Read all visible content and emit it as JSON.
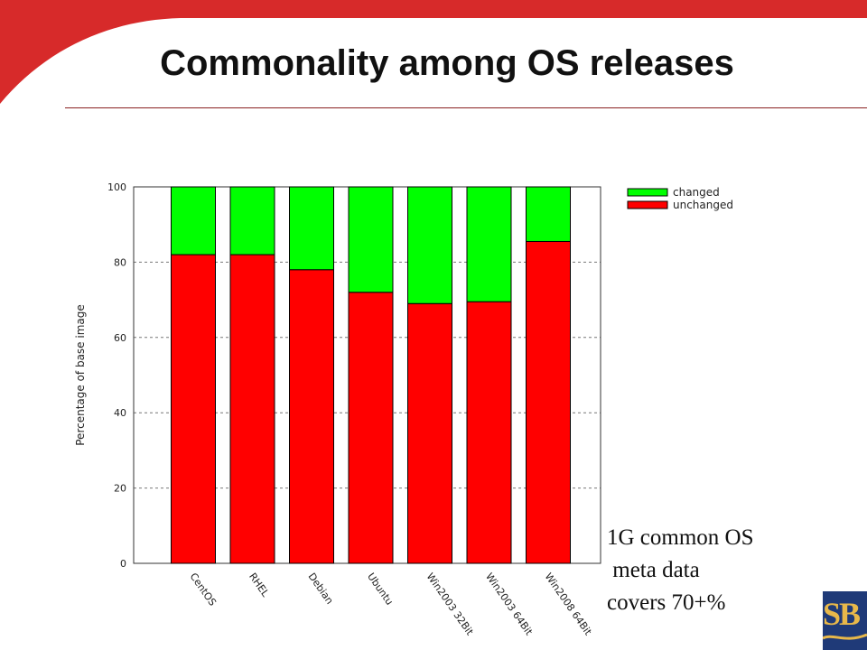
{
  "slide": {
    "title": "Commonality among OS releases",
    "note_lines": [
      "1G common OS",
      " meta data",
      "covers 70+%"
    ],
    "logo_text": "SB",
    "accent_color": "#d72a2a",
    "logo_color": "#1f3a78"
  },
  "chart_data": {
    "type": "bar",
    "stacked": true,
    "title": "",
    "xlabel": "",
    "ylabel": "Percentage of base image",
    "ylim": [
      0,
      100
    ],
    "yticks": [
      0,
      20,
      40,
      60,
      80,
      100
    ],
    "grid": "horizontal dashed",
    "legend_position": "top-right, outside plot",
    "categories": [
      "CentOS",
      "RHEL",
      "Debian",
      "Ubuntu",
      "Win2003 32Bit",
      "Win2003 64Bit",
      "Win2008 64Bit"
    ],
    "series": [
      {
        "name": "unchanged",
        "color": "#ff0000",
        "values": [
          82,
          82,
          78,
          72,
          69,
          69.5,
          85.5
        ]
      },
      {
        "name": "changed",
        "color": "#00ff00",
        "values": [
          18,
          18,
          22,
          28,
          31,
          30.5,
          14.5
        ]
      }
    ]
  }
}
